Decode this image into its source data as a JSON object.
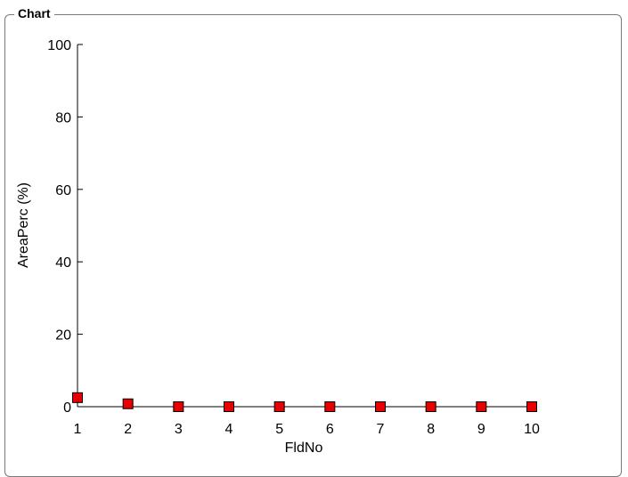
{
  "group": {
    "title": "Chart"
  },
  "chart_data": {
    "type": "scatter",
    "title": "",
    "xlabel": "FldNo",
    "ylabel": "AreaPerc (%)",
    "xlim": [
      1,
      10
    ],
    "ylim": [
      0,
      100
    ],
    "xticks": [
      1,
      2,
      3,
      4,
      5,
      6,
      7,
      8,
      9,
      10
    ],
    "yticks": [
      0,
      20,
      40,
      60,
      80,
      100
    ],
    "grid": false,
    "marker": "square",
    "marker_fill": "#e60000",
    "marker_stroke": "#000000",
    "series": [
      {
        "x": [
          1,
          2,
          3,
          4,
          5,
          6,
          7,
          8,
          9,
          10
        ],
        "y": [
          2.5,
          0.8,
          0,
          0,
          0,
          0,
          0,
          0,
          0,
          0
        ]
      }
    ]
  }
}
